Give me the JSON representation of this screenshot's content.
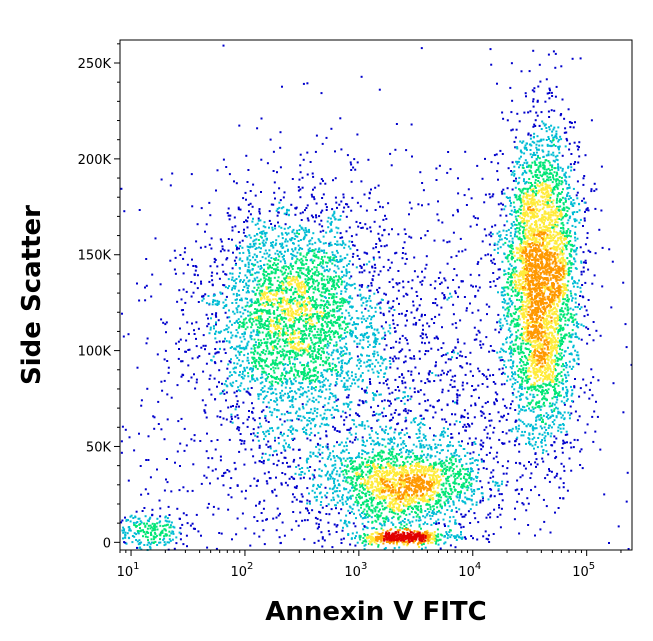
{
  "chart_data": {
    "type": "scatter",
    "subtype": "flow-cytometry-density-dot-plot",
    "xlabel": "Annexin V FITC",
    "ylabel": "Side Scatter",
    "x_scale": "log",
    "xlim": [
      8,
      250000
    ],
    "ylim": [
      -4000,
      262000
    ],
    "x_ticks": [
      {
        "value": 10,
        "base": "10",
        "exp": "1"
      },
      {
        "value": 100,
        "base": "10",
        "exp": "2"
      },
      {
        "value": 1000,
        "base": "10",
        "exp": "3"
      },
      {
        "value": 10000,
        "base": "10",
        "exp": "4"
      },
      {
        "value": 100000,
        "base": "10",
        "exp": "5"
      }
    ],
    "y_ticks": [
      {
        "value": 0,
        "label": "0"
      },
      {
        "value": 50000,
        "label": "50K"
      },
      {
        "value": 100000,
        "label": "100K"
      },
      {
        "value": 150000,
        "label": "150K"
      },
      {
        "value": 200000,
        "label": "200K"
      },
      {
        "value": 250000,
        "label": "250K"
      }
    ],
    "grid": false,
    "legend": "none",
    "density_colors": [
      "#0000cc",
      "#00bcd4",
      "#00e676",
      "#ffeb3b",
      "#ff9800",
      "#e00000"
    ],
    "populations": [
      {
        "x_center": 250,
        "x_spread_decades": 0.35,
        "y_center": 120000,
        "y_spread": 28000,
        "count": 2600
      },
      {
        "x_center": 40000,
        "x_spread_decades": 0.17,
        "y_center": 135000,
        "y_spread": 42000,
        "count": 3800
      },
      {
        "x_center": 2500,
        "x_spread_decades": 0.35,
        "y_center": 30000,
        "y_spread": 12000,
        "count": 1700
      },
      {
        "x_center": 2500,
        "x_spread_decades": 0.22,
        "y_center": 2500,
        "y_spread": 1500,
        "count": 450
      },
      {
        "x_center": 15,
        "x_spread_decades": 0.2,
        "y_center": 6000,
        "y_spread": 5000,
        "count": 250
      },
      {
        "x_center": 1000,
        "x_spread_decades": 0.9,
        "y_center": 80000,
        "y_spread": 55000,
        "count": 2600
      }
    ]
  }
}
